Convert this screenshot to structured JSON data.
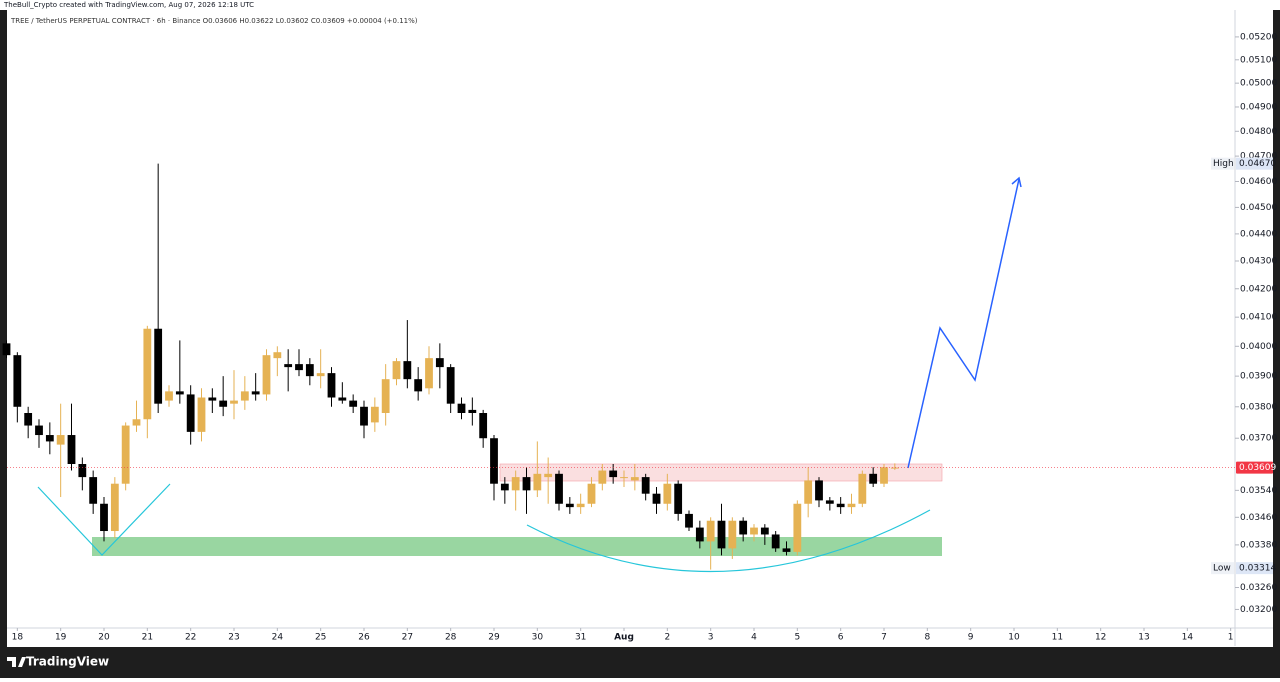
{
  "chart_data": {
    "type": "candlestick",
    "title": "TheBull_Crypto created with TradingView.com, Aug 07, 2026 12:18 UTC",
    "subtitle": "TREE / TetherUS PERPETUAL CONTRACT · 6h · Binance   O0.03606  H0.03622  L0.03602  C0.03609  +0.00004 (+0.11%)",
    "footer": "TradingView",
    "log_scale": true,
    "bull_color": "#e5b253",
    "bear_color": "#000000",
    "x": [
      -0.25,
      0,
      0.25,
      0.5,
      0.75,
      1,
      1.25,
      1.5,
      1.75,
      2,
      2.25,
      2.5,
      2.75,
      3,
      3.25,
      3.5,
      3.75,
      4,
      4.25,
      4.5,
      4.75,
      5,
      5.25,
      5.5,
      5.75,
      6,
      6.25,
      6.5,
      6.75,
      7,
      7.25,
      7.5,
      7.75,
      8,
      8.25,
      8.5,
      8.75,
      9,
      9.25,
      9.5,
      9.75,
      10,
      10.25,
      10.5,
      10.75,
      11,
      11.25,
      11.5,
      11.75,
      12,
      12.25,
      12.5,
      12.75,
      13,
      13.25,
      13.5,
      13.75,
      14,
      14.25,
      14.5,
      14.75,
      15,
      15.25,
      15.5,
      15.75,
      16,
      16.25,
      16.5,
      16.75,
      17,
      17.25,
      17.5,
      17.75,
      18,
      18.25,
      18.5,
      18.75,
      19,
      19.25,
      19.5,
      19.75,
      20,
      20.25
    ],
    "open": [
      0.0401,
      0.0397,
      0.0378,
      0.0374,
      0.0371,
      0.0368,
      0.0371,
      0.0362,
      0.0358,
      0.035,
      0.0342,
      0.0356,
      0.0374,
      0.0376,
      0.0406,
      0.0382,
      0.0385,
      0.0384,
      0.0372,
      0.0383,
      0.0382,
      0.0381,
      0.0382,
      0.0385,
      0.0384,
      0.0396,
      0.0394,
      0.0394,
      0.0394,
      0.039,
      0.0391,
      0.0383,
      0.0382,
      0.038,
      0.0375,
      0.0378,
      0.0389,
      0.0395,
      0.0389,
      0.0386,
      0.0396,
      0.0393,
      0.0381,
      0.0379,
      0.0378,
      0.037,
      0.0356,
      0.0354,
      0.0358,
      0.0354,
      0.0358,
      0.0359,
      0.035,
      0.0349,
      0.035,
      0.0356,
      0.036,
      0.0358,
      0.0357,
      0.0358,
      0.0353,
      0.035,
      0.0356,
      0.0347,
      0.0343,
      0.0339,
      0.0345,
      0.0337,
      0.0345,
      0.0341,
      0.0343,
      0.0341,
      0.0337,
      0.0336,
      0.035,
      0.0357,
      0.0351,
      0.035,
      0.0349,
      0.035,
      0.0359,
      0.0356,
      0.03606
    ],
    "high": [
      0.0402,
      0.0398,
      0.038,
      0.0376,
      0.0375,
      0.0381,
      0.0381,
      0.0364,
      0.036,
      0.0352,
      0.0358,
      0.0375,
      0.0382,
      0.0407,
      0.0467,
      0.0387,
      0.0402,
      0.0387,
      0.0386,
      0.0386,
      0.039,
      0.0392,
      0.039,
      0.0391,
      0.0399,
      0.04,
      0.0399,
      0.0399,
      0.0396,
      0.0399,
      0.0393,
      0.0388,
      0.0384,
      0.0382,
      0.0383,
      0.0394,
      0.0396,
      0.0409,
      0.0393,
      0.04,
      0.0401,
      0.0394,
      0.0383,
      0.0383,
      0.0379,
      0.0371,
      0.0358,
      0.036,
      0.0361,
      0.0369,
      0.0364,
      0.036,
      0.0352,
      0.0353,
      0.0358,
      0.0362,
      0.0362,
      0.036,
      0.0362,
      0.0359,
      0.0355,
      0.0359,
      0.0357,
      0.0348,
      0.0345,
      0.0346,
      0.035,
      0.0346,
      0.0346,
      0.0344,
      0.0344,
      0.0342,
      0.0339,
      0.0351,
      0.0361,
      0.0358,
      0.0352,
      0.0352,
      0.0353,
      0.036,
      0.0361,
      0.0362,
      0.03622
    ],
    "low": [
      0.0396,
      0.0375,
      0.037,
      0.0367,
      0.0365,
      0.0352,
      0.036,
      0.0354,
      0.0347,
      0.0339,
      0.034,
      0.0354,
      0.0372,
      0.037,
      0.0378,
      0.038,
      0.0381,
      0.0368,
      0.0369,
      0.0378,
      0.0377,
      0.0376,
      0.0379,
      0.0382,
      0.0382,
      0.039,
      0.0385,
      0.039,
      0.0387,
      0.0386,
      0.038,
      0.0381,
      0.0378,
      0.037,
      0.0372,
      0.0374,
      0.0387,
      0.0386,
      0.0382,
      0.0384,
      0.0386,
      0.0378,
      0.0376,
      0.0374,
      0.0367,
      0.0351,
      0.035,
      0.0348,
      0.0347,
      0.0352,
      0.035,
      0.0348,
      0.0347,
      0.0347,
      0.0349,
      0.0354,
      0.0356,
      0.0355,
      0.0354,
      0.0351,
      0.0347,
      0.0348,
      0.0345,
      0.0342,
      0.0337,
      0.0331,
      0.0335,
      0.0334,
      0.0339,
      0.0339,
      0.0338,
      0.0336,
      0.0335,
      0.0335,
      0.0346,
      0.0349,
      0.0348,
      0.0347,
      0.0347,
      0.0349,
      0.0355,
      0.0355,
      0.03602
    ],
    "close": [
      0.0397,
      0.038,
      0.0374,
      0.0371,
      0.0369,
      0.0371,
      0.0362,
      0.0358,
      0.035,
      0.0342,
      0.0356,
      0.0374,
      0.0376,
      0.0406,
      0.0381,
      0.0385,
      0.0384,
      0.0372,
      0.0383,
      0.0382,
      0.038,
      0.0382,
      0.0385,
      0.0384,
      0.0397,
      0.0398,
      0.0393,
      0.0392,
      0.039,
      0.0391,
      0.0383,
      0.0382,
      0.038,
      0.0374,
      0.038,
      0.0389,
      0.0395,
      0.0389,
      0.0385,
      0.0396,
      0.0393,
      0.0381,
      0.0378,
      0.0378,
      0.037,
      0.0356,
      0.0354,
      0.0358,
      0.0354,
      0.0359,
      0.0359,
      0.035,
      0.0349,
      0.035,
      0.0356,
      0.036,
      0.0358,
      0.0358,
      0.0358,
      0.0353,
      0.035,
      0.0356,
      0.0347,
      0.0343,
      0.0339,
      0.0345,
      0.0337,
      0.0345,
      0.0341,
      0.0343,
      0.0341,
      0.0337,
      0.0336,
      0.035,
      0.0357,
      0.0351,
      0.035,
      0.0349,
      0.035,
      0.0359,
      0.0356,
      0.0361,
      0.03609
    ],
    "xlim": [
      -0.4,
      28.1
    ],
    "xticks": [
      {
        "value": 0,
        "label": "18"
      },
      {
        "value": 1,
        "label": "19"
      },
      {
        "value": 2,
        "label": "20"
      },
      {
        "value": 3,
        "label": "21"
      },
      {
        "value": 4,
        "label": "22"
      },
      {
        "value": 5,
        "label": "23"
      },
      {
        "value": 6,
        "label": "24"
      },
      {
        "value": 7,
        "label": "25"
      },
      {
        "value": 8,
        "label": "26"
      },
      {
        "value": 9,
        "label": "27"
      },
      {
        "value": 10,
        "label": "28"
      },
      {
        "value": 11,
        "label": "29"
      },
      {
        "value": 12,
        "label": "30"
      },
      {
        "value": 13,
        "label": "31"
      },
      {
        "value": 14,
        "label": "Aug"
      },
      {
        "value": 15,
        "label": "2"
      },
      {
        "value": 16,
        "label": "3"
      },
      {
        "value": 17,
        "label": "4"
      },
      {
        "value": 18,
        "label": "5"
      },
      {
        "value": 19,
        "label": "6"
      },
      {
        "value": 20,
        "label": "7"
      },
      {
        "value": 21,
        "label": "8"
      },
      {
        "value": 22,
        "label": "9"
      },
      {
        "value": 23,
        "label": "10"
      },
      {
        "value": 24,
        "label": "11"
      },
      {
        "value": 25,
        "label": "12"
      },
      {
        "value": 26,
        "label": "13"
      },
      {
        "value": 27,
        "label": "14"
      },
      {
        "value": 28,
        "label": "1"
      }
    ],
    "ylim": [
      0.0315,
      0.0532
    ],
    "yticks": [
      {
        "value": 0.052,
        "label": "0.05200"
      },
      {
        "value": 0.051,
        "label": "0.05100"
      },
      {
        "value": 0.05,
        "label": "0.05000"
      },
      {
        "value": 0.049,
        "label": "0.04900"
      },
      {
        "value": 0.048,
        "label": "0.04800"
      },
      {
        "value": 0.047,
        "label": "0.04700"
      },
      {
        "value": 0.046,
        "label": "0.04600"
      },
      {
        "value": 0.045,
        "label": "0.04500"
      },
      {
        "value": 0.044,
        "label": "0.04400"
      },
      {
        "value": 0.043,
        "label": "0.04300"
      },
      {
        "value": 0.042,
        "label": "0.04200"
      },
      {
        "value": 0.041,
        "label": "0.04100"
      },
      {
        "value": 0.04,
        "label": "0.04000"
      },
      {
        "value": 0.039,
        "label": "0.03900"
      },
      {
        "value": 0.038,
        "label": "0.03800"
      },
      {
        "value": 0.037,
        "label": "0.03700"
      },
      {
        "value": 0.0354,
        "label": "0.03540"
      },
      {
        "value": 0.0346,
        "label": "0.03460"
      },
      {
        "value": 0.0338,
        "label": "0.03380"
      },
      {
        "value": 0.0326,
        "label": "0.03260"
      },
      {
        "value": 0.032,
        "label": "0.03200"
      }
    ],
    "price_labels": [
      {
        "name": "High",
        "value": 0.0467,
        "value_label": "0.04670"
      },
      {
        "name": "Low",
        "value": 0.03314,
        "value_label": "0.03314"
      }
    ],
    "last_price": {
      "value": 0.03609,
      "value_label": "0.03609",
      "color": "#f23645"
    }
  }
}
